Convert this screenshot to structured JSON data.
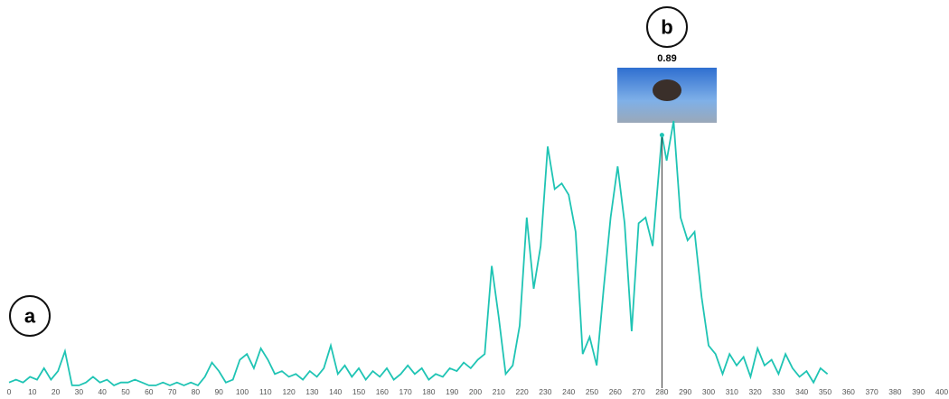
{
  "chart_data": {
    "type": "line",
    "x": [
      0,
      3,
      6,
      9,
      12,
      15,
      18,
      21,
      24,
      27,
      30,
      33,
      36,
      39,
      42,
      45,
      48,
      51,
      54,
      57,
      60,
      63,
      66,
      69,
      72,
      75,
      78,
      81,
      84,
      87,
      90,
      93,
      96,
      99,
      102,
      105,
      108,
      111,
      114,
      117,
      120,
      123,
      126,
      129,
      132,
      135,
      138,
      141,
      144,
      147,
      150,
      153,
      156,
      159,
      162,
      165,
      168,
      171,
      174,
      177,
      180,
      183,
      186,
      189,
      192,
      195,
      198,
      201,
      204,
      207,
      210,
      213,
      216,
      219,
      222,
      225,
      228,
      231,
      234,
      237,
      240,
      243,
      246,
      249,
      252,
      255,
      258,
      261,
      264,
      267,
      270,
      273,
      276,
      280,
      282,
      285,
      288,
      291,
      294,
      297,
      300,
      303,
      306,
      309,
      312,
      315,
      318,
      321,
      324,
      327,
      330,
      333,
      336,
      339,
      342,
      345,
      348,
      351
    ],
    "series": [
      {
        "color": "#1fc4b4",
        "values": [
          0.02,
          0.03,
          0.02,
          0.04,
          0.03,
          0.07,
          0.03,
          0.06,
          0.13,
          0.01,
          0.01,
          0.02,
          0.04,
          0.02,
          0.03,
          0.01,
          0.02,
          0.02,
          0.03,
          0.02,
          0.01,
          0.01,
          0.02,
          0.01,
          0.02,
          0.01,
          0.02,
          0.01,
          0.04,
          0.09,
          0.06,
          0.02,
          0.03,
          0.1,
          0.12,
          0.07,
          0.14,
          0.1,
          0.05,
          0.06,
          0.04,
          0.05,
          0.03,
          0.06,
          0.04,
          0.07,
          0.15,
          0.05,
          0.08,
          0.04,
          0.07,
          0.03,
          0.06,
          0.04,
          0.07,
          0.03,
          0.05,
          0.08,
          0.05,
          0.07,
          0.03,
          0.05,
          0.04,
          0.07,
          0.06,
          0.09,
          0.07,
          0.1,
          0.12,
          0.43,
          0.25,
          0.05,
          0.08,
          0.22,
          0.6,
          0.35,
          0.5,
          0.85,
          0.7,
          0.72,
          0.68,
          0.55,
          0.12,
          0.18,
          0.08,
          0.35,
          0.6,
          0.78,
          0.58,
          0.2,
          0.58,
          0.6,
          0.5,
          0.89,
          0.8,
          0.94,
          0.6,
          0.52,
          0.55,
          0.32,
          0.15,
          0.12,
          0.05,
          0.12,
          0.08,
          0.11,
          0.04,
          0.14,
          0.08,
          0.1,
          0.05,
          0.12,
          0.07,
          0.04,
          0.06,
          0.02,
          0.07,
          0.05
        ]
      }
    ],
    "xlim": [
      0,
      400
    ],
    "xticks": [
      0,
      10,
      20,
      30,
      40,
      50,
      60,
      70,
      80,
      90,
      100,
      110,
      120,
      130,
      140,
      150,
      160,
      170,
      180,
      190,
      200,
      210,
      220,
      230,
      240,
      250,
      260,
      270,
      280,
      290,
      300,
      310,
      320,
      330,
      340,
      350,
      360,
      370,
      380,
      390,
      400
    ],
    "ylim": [
      0,
      1
    ],
    "hover": {
      "x": 280,
      "value": 0.89
    },
    "annotations": [
      "a",
      "b"
    ]
  }
}
